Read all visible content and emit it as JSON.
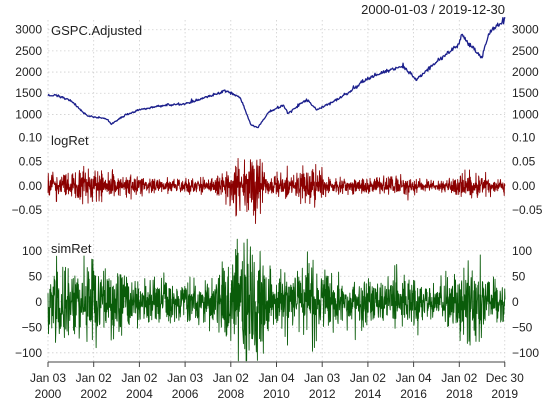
{
  "date_range": "2000-01-03 / 2019-12-30",
  "colors": {
    "background": "#ffffff",
    "grid": "#cfcfcf",
    "axis_text": "#222222",
    "panel_border": "#b0b0b0"
  },
  "chart_data": [
    {
      "type": "line",
      "panel_label": "GSPC.Adjusted",
      "color": "#1b1f8c",
      "ylim": [
        750,
        3230
      ],
      "y_ticks": [
        1000,
        1500,
        2000,
        2500,
        3000
      ],
      "x": [
        "2000-01-03",
        "2000-06-01",
        "2001-01-01",
        "2001-09-20",
        "2002-07-15",
        "2002-10-09",
        "2003-06-01",
        "2004-01-01",
        "2004-12-31",
        "2005-12-30",
        "2006-12-29",
        "2007-10-09",
        "2008-06-01",
        "2008-11-20",
        "2009-03-09",
        "2009-09-01",
        "2010-04-23",
        "2010-07-02",
        "2011-04-29",
        "2011-10-03",
        "2012-06-01",
        "2013-01-02",
        "2013-12-31",
        "2014-12-31",
        "2015-07-20",
        "2016-02-11",
        "2016-12-30",
        "2017-12-29",
        "2018-01-26",
        "2018-12-24",
        "2019-04-30",
        "2019-12-30"
      ],
      "values": [
        1455,
        1450,
        1320,
        965,
        900,
        775,
        990,
        1110,
        1210,
        1250,
        1420,
        1565,
        1400,
        752,
        680,
        1060,
        1215,
        1020,
        1360,
        1100,
        1280,
        1460,
        1850,
        2060,
        2130,
        1830,
        2240,
        2670,
        2870,
        2350,
        2940,
        3230
      ]
    },
    {
      "type": "line",
      "panel_label": "logRet",
      "color": "#8b0000",
      "ylim": [
        -0.095,
        0.115
      ],
      "y_ticks": [
        -0.05,
        0.0,
        0.05,
        0.1
      ],
      "x_years": [
        2000,
        2020
      ],
      "volatility_profile": [
        [
          2000.0,
          0.013
        ],
        [
          2002.0,
          0.016
        ],
        [
          2003.2,
          0.011
        ],
        [
          2004.0,
          0.008
        ],
        [
          2007.0,
          0.007
        ],
        [
          2007.6,
          0.013
        ],
        [
          2008.7,
          0.035
        ],
        [
          2009.2,
          0.028
        ],
        [
          2009.6,
          0.015
        ],
        [
          2010.3,
          0.01
        ],
        [
          2010.4,
          0.016
        ],
        [
          2010.6,
          0.01
        ],
        [
          2011.6,
          0.02
        ],
        [
          2012.0,
          0.012
        ],
        [
          2013.0,
          0.008
        ],
        [
          2016.0,
          0.009
        ],
        [
          2017.0,
          0.004
        ],
        [
          2018.1,
          0.014
        ],
        [
          2018.9,
          0.016
        ],
        [
          2019.2,
          0.008
        ],
        [
          2020.0,
          0.008
        ]
      ]
    },
    {
      "type": "line",
      "panel_label": "simRet",
      "color": "#0a5c0a",
      "ylim": [
        -118,
        125
      ],
      "y_ticks": [
        -100,
        -50,
        0,
        50,
        100
      ],
      "x_years": [
        2000,
        2020
      ]
    }
  ],
  "x_axis": {
    "ticks": [
      {
        "line1": "Jan 03",
        "line2": "2000",
        "year": 2000.0
      },
      {
        "line1": "Jan 02",
        "line2": "2002",
        "year": 2002.0
      },
      {
        "line1": "Jan 02",
        "line2": "2004",
        "year": 2004.0
      },
      {
        "line1": "Jan 03",
        "line2": "2006",
        "year": 2006.0
      },
      {
        "line1": "Jan 02",
        "line2": "2008",
        "year": 2008.0
      },
      {
        "line1": "Jan 04",
        "line2": "2010",
        "year": 2010.0
      },
      {
        "line1": "Jan 03",
        "line2": "2012",
        "year": 2012.0
      },
      {
        "line1": "Jan 02",
        "line2": "2014",
        "year": 2014.0
      },
      {
        "line1": "Jan 04",
        "line2": "2016",
        "year": 2016.0
      },
      {
        "line1": "Jan 02",
        "line2": "2018",
        "year": 2018.0
      },
      {
        "line1": "Dec 30",
        "line2": "2019",
        "year": 2019.99
      }
    ]
  }
}
